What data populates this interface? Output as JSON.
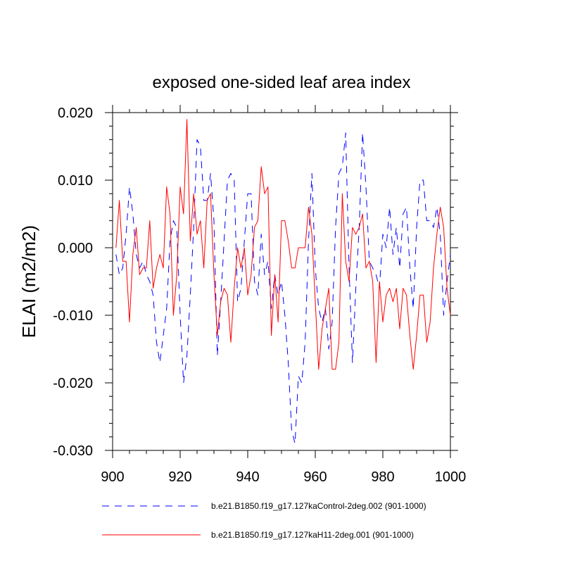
{
  "chart_data": {
    "type": "line",
    "title": "exposed one-sided leaf area index",
    "xlabel": "",
    "ylabel": "ELAI  (m2/m2)",
    "xlim": [
      900,
      1000
    ],
    "ylim": [
      -0.03,
      0.02
    ],
    "xticks": [
      900,
      920,
      940,
      960,
      980,
      1000
    ],
    "xtick_labels": [
      "900",
      "920",
      "940",
      "960",
      "980",
      "1000"
    ],
    "yticks": [
      0.02,
      0.01,
      0.0,
      -0.01,
      -0.02,
      -0.03
    ],
    "ytick_labels": [
      "0.020",
      "0.010",
      "0.000",
      "-0.010",
      "-0.020",
      "-0.030"
    ],
    "x": [
      901,
      902,
      903,
      904,
      905,
      906,
      907,
      908,
      909,
      910,
      911,
      912,
      913,
      914,
      915,
      916,
      917,
      918,
      919,
      920,
      921,
      922,
      923,
      924,
      925,
      926,
      927,
      928,
      929,
      930,
      931,
      932,
      933,
      934,
      935,
      936,
      937,
      938,
      939,
      940,
      941,
      942,
      943,
      944,
      945,
      946,
      947,
      948,
      949,
      950,
      951,
      952,
      953,
      954,
      955,
      956,
      957,
      958,
      959,
      960,
      961,
      962,
      963,
      964,
      965,
      966,
      967,
      968,
      969,
      970,
      971,
      972,
      973,
      974,
      975,
      976,
      977,
      978,
      979,
      980,
      981,
      982,
      983,
      984,
      985,
      986,
      987,
      988,
      989,
      990,
      991,
      992,
      993,
      994,
      995,
      996,
      997,
      998,
      999,
      1000
    ],
    "series": [
      {
        "name": "b.e21.B1850.f19_g17.127kaControl-2deg.002 (901-1000)",
        "color": "#0000ff",
        "dash": "dashed",
        "values": [
          -0.001,
          -0.004,
          -0.003,
          0.002,
          0.009,
          0.005,
          -0.001,
          -0.003,
          -0.002,
          -0.004,
          -0.005,
          -0.007,
          -0.014,
          -0.017,
          -0.013,
          -0.009,
          0.001,
          0.004,
          0.003,
          -0.01,
          -0.02,
          -0.016,
          -0.007,
          0.003,
          0.016,
          0.015,
          0.007,
          0.007,
          0.011,
          0.004,
          -0.016,
          -0.008,
          0.001,
          0.01,
          0.011,
          0.01,
          -0.008,
          -0.006,
          0.001,
          0.008,
          0.008,
          -0.005,
          -0.007,
          0.002,
          -0.004,
          -0.002,
          -0.009,
          -0.004,
          -0.007,
          -0.005,
          -0.01,
          -0.017,
          -0.027,
          -0.029,
          -0.019,
          -0.02,
          -0.014,
          0.001,
          0.011,
          -0.003,
          -0.009,
          -0.011,
          -0.009,
          -0.015,
          -0.011,
          0.003,
          0.011,
          0.012,
          0.017,
          -0.003,
          -0.017,
          -0.006,
          0.003,
          0.017,
          0.009,
          -0.002,
          -0.003,
          -0.004,
          -0.006,
          0.002,
          0.0,
          0.006,
          -0.001,
          0.003,
          -0.003,
          0.005,
          0.006,
          -0.003,
          -0.009,
          0.003,
          0.01,
          0.01,
          0.004,
          0.004,
          0.003,
          0.006,
          0.002,
          -0.01,
          -0.005,
          -0.001
        ]
      },
      {
        "name": "b.e21.B1850.f19_g17.127kaH11-2deg.001 (901-1000)",
        "color": "#ff0000",
        "dash": "solid",
        "values": [
          0.0,
          0.007,
          -0.002,
          -0.002,
          -0.011,
          -0.001,
          0.003,
          -0.004,
          -0.003,
          -0.003,
          0.004,
          -0.006,
          -0.003,
          -0.001,
          -0.003,
          0.009,
          0.005,
          -0.01,
          -0.004,
          0.009,
          0.005,
          0.019,
          0.001,
          0.008,
          0.002,
          0.004,
          -0.003,
          0.007,
          0.008,
          -0.004,
          -0.013,
          -0.008,
          -0.006,
          -0.007,
          -0.014,
          -0.006,
          0.0,
          -0.003,
          0.0,
          -0.007,
          -0.004,
          0.003,
          0.004,
          0.012,
          0.008,
          0.009,
          -0.013,
          -0.004,
          -0.011,
          0.004,
          0.004,
          0.001,
          -0.003,
          -0.003,
          0.0,
          0.0,
          0.0,
          0.006,
          0.002,
          -0.008,
          -0.018,
          -0.012,
          -0.009,
          -0.006,
          -0.018,
          -0.018,
          -0.014,
          0.008,
          -0.002,
          -0.005,
          0.003,
          0.002,
          0.003,
          0.005,
          -0.003,
          -0.002,
          -0.005,
          -0.017,
          -0.005,
          -0.011,
          -0.007,
          -0.006,
          -0.008,
          -0.006,
          -0.012,
          -0.006,
          -0.007,
          -0.013,
          -0.018,
          -0.013,
          -0.007,
          -0.007,
          -0.014,
          -0.011,
          -0.003,
          0.002,
          0.006,
          0.003,
          -0.006,
          -0.01
        ]
      }
    ]
  }
}
